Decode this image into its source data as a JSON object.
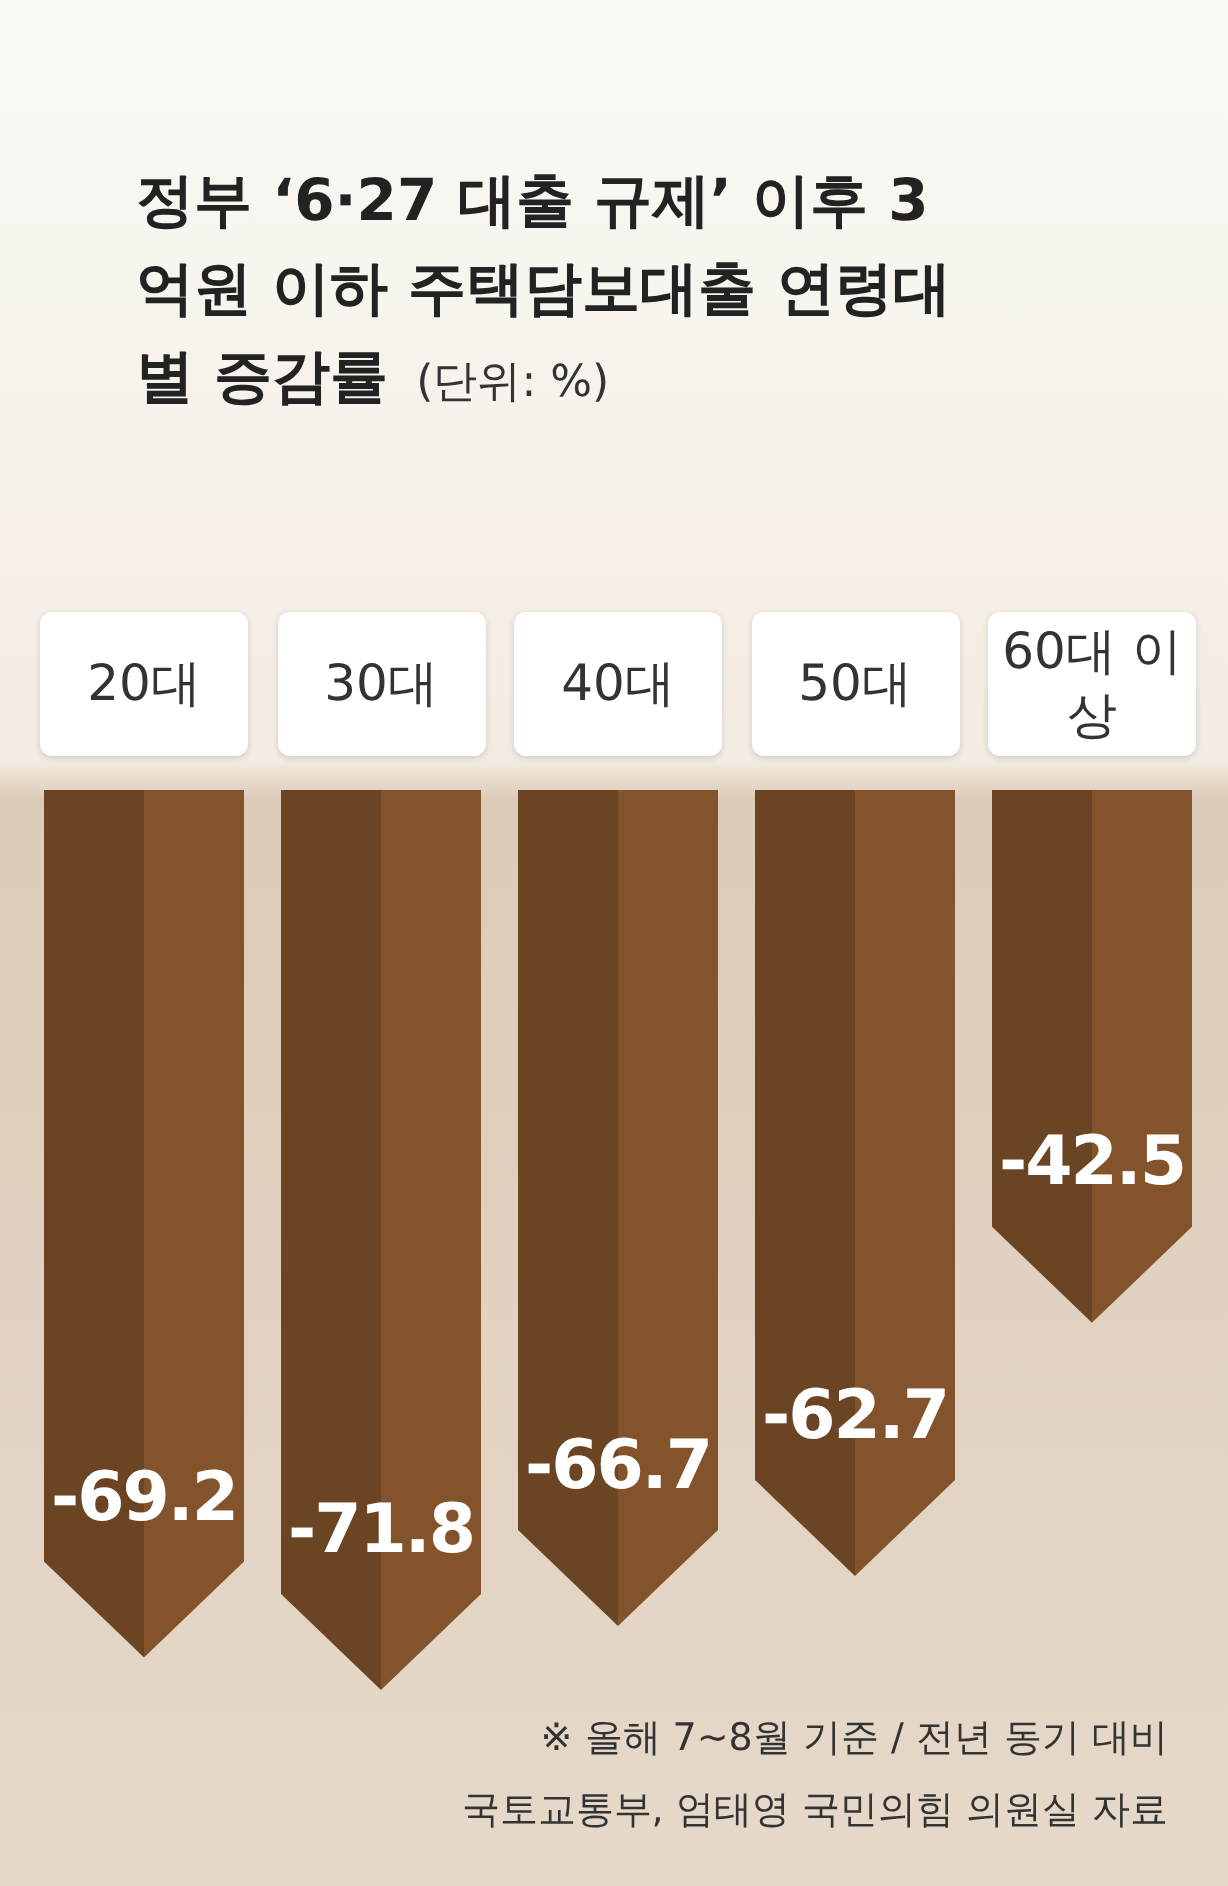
{
  "chart_data": {
    "type": "bar",
    "title": "정부 ‘6·27 대출 규제’ 이후 3억원 이하 주택담보대출 연령대별 증감률",
    "subtitle": "(단위: %)",
    "categories": [
      "20대",
      "30대",
      "40대",
      "50대",
      "60대 이상"
    ],
    "values": [
      -69.2,
      -71.8,
      -66.7,
      -62.7,
      -42.5
    ],
    "color": "#83542b",
    "data_labels": true,
    "annotations": [
      "※ 올해 7~8월 기준 / 전년 동기 대비",
      "국토교통부, 엄태영 국민의힘 의원실 자료"
    ]
  }
}
